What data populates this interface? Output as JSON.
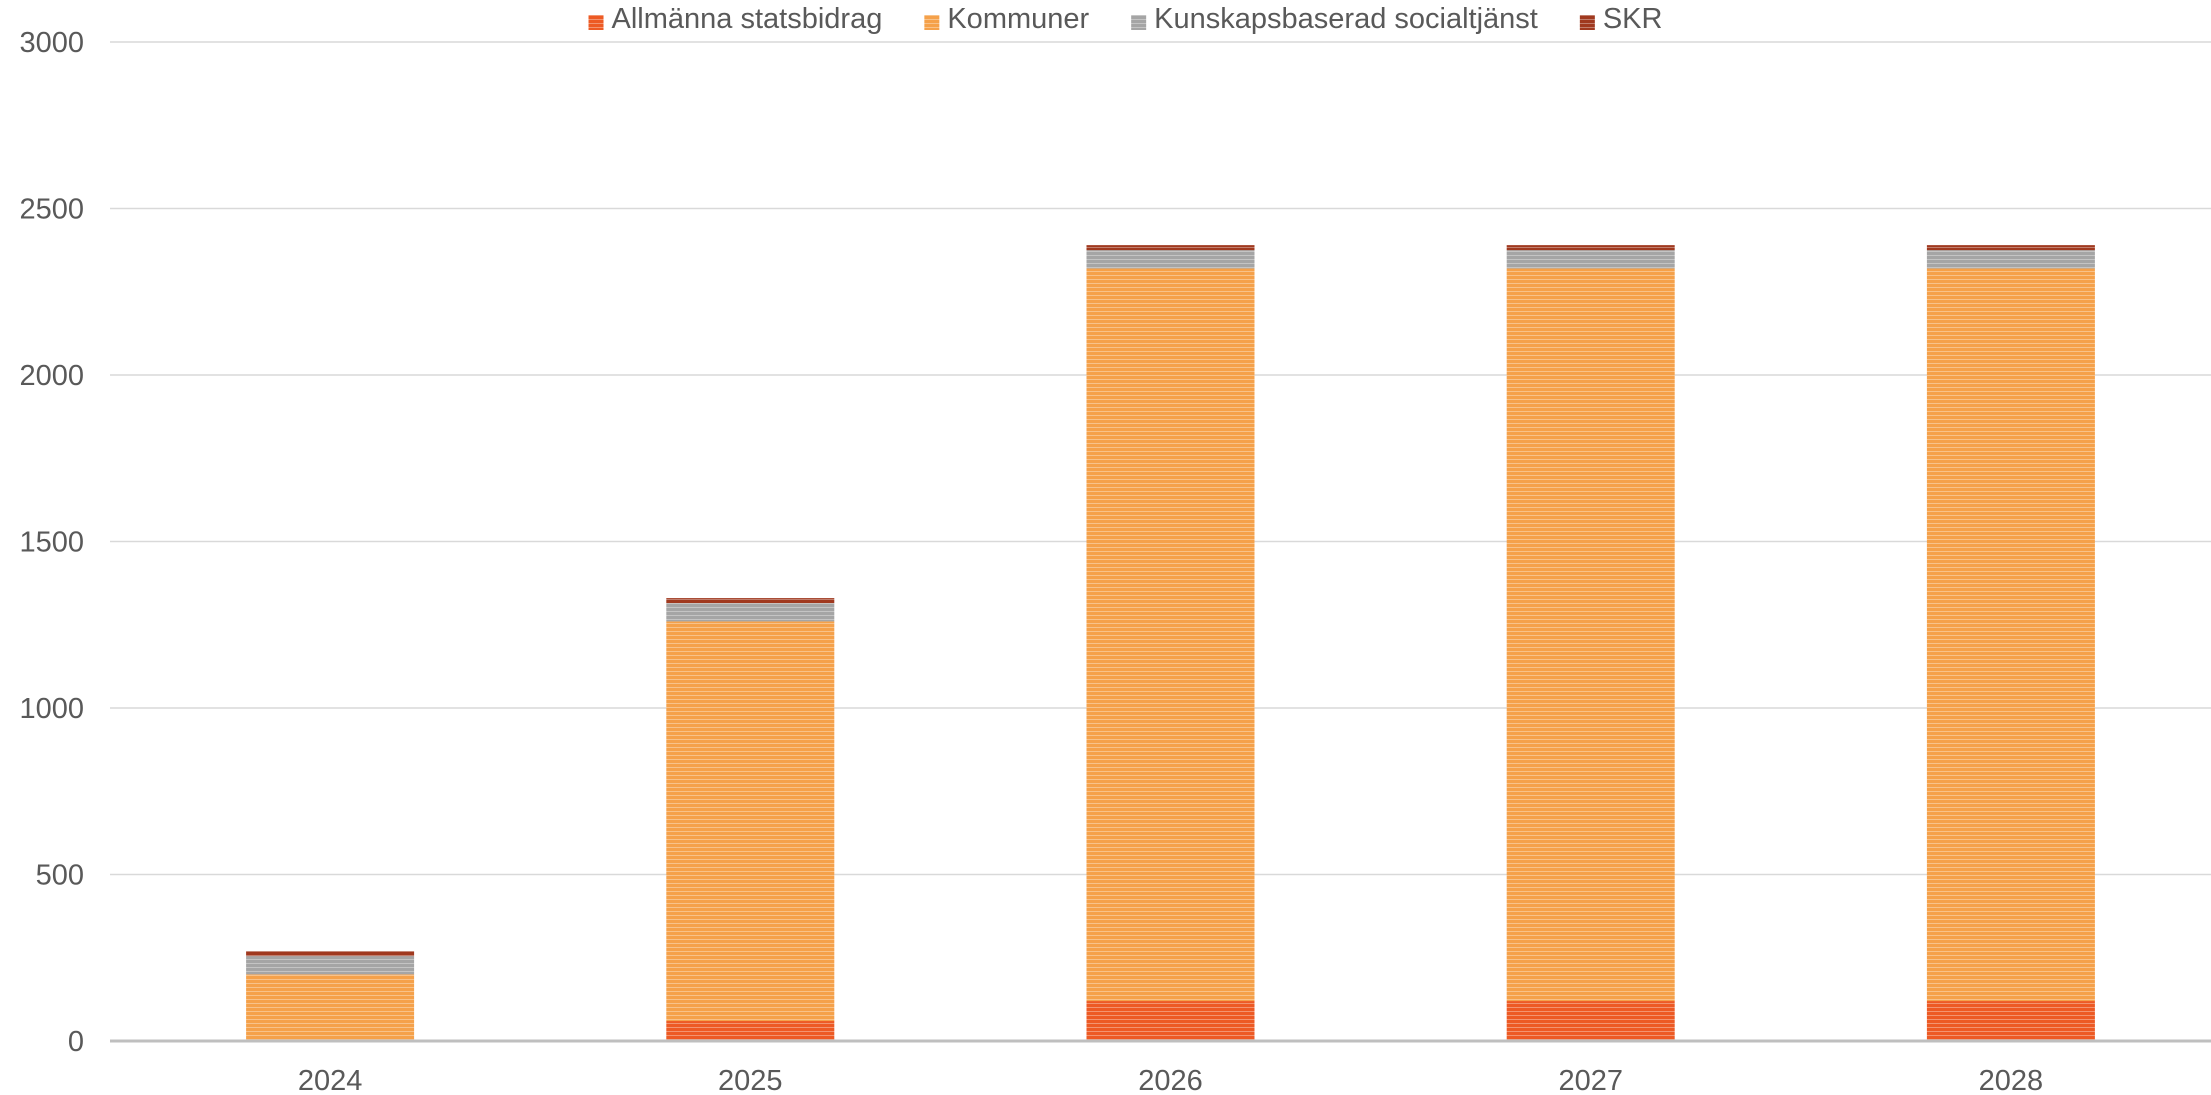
{
  "colors": {
    "Allmänna statsbidrag": "#ED5A24",
    "Kommuner": "#F5A14A",
    "Kunskapsbaserad socialtjänst": "#A5A5A5",
    "SKR": "#A0391F",
    "grid": "#D9D9D9",
    "axis": "#BFBFBF",
    "text": "#595959"
  },
  "chart_data": {
    "type": "bar",
    "stacked": true,
    "title": "",
    "xlabel": "",
    "ylabel": "",
    "categories": [
      "2024",
      "2025",
      "2026",
      "2027",
      "2028"
    ],
    "series": [
      {
        "name": "Allmänna statsbidrag",
        "values": [
          0,
          60,
          120,
          120,
          120
        ]
      },
      {
        "name": "Kommuner",
        "values": [
          200,
          1200,
          2200,
          2200,
          2200
        ]
      },
      {
        "name": "Kunskapsbaserad socialtjänst",
        "values": [
          55,
          55,
          55,
          55,
          55
        ]
      },
      {
        "name": "SKR",
        "values": [
          15,
          15,
          15,
          15,
          15
        ]
      }
    ],
    "ylim": [
      0,
      3000
    ],
    "yticks": [
      0,
      500,
      1000,
      1500,
      2000,
      2500,
      3000
    ],
    "grid": true,
    "legend_position": "top"
  }
}
